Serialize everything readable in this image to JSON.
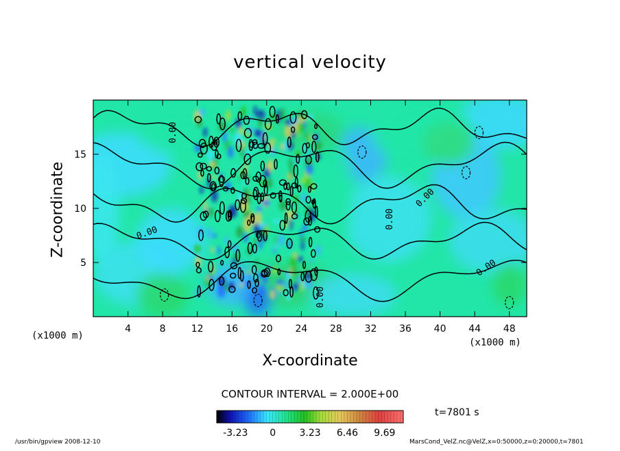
{
  "chart_data": {
    "type": "heatmap",
    "title": "vertical velocity",
    "xlabel": "X-coordinate",
    "ylabel": "Z-coordinate",
    "x_unit": "(x1000 m)",
    "xlim": [
      0,
      50
    ],
    "ylim": [
      0,
      20
    ],
    "x_ticks": [
      4,
      8,
      12,
      16,
      20,
      24,
      28,
      32,
      36,
      40,
      44,
      48
    ],
    "y_ticks": [
      5,
      10,
      15
    ],
    "contour_interval": "CONTOUR INTERVAL = 2.000E+00",
    "contour_labels": [
      "0.00",
      "0.00",
      "0.00",
      "0.00",
      "0.00",
      "0.00"
    ],
    "colorbar": {
      "ticks": [
        "-3.23",
        "0",
        "3.23",
        "6.46",
        "9.69"
      ],
      "tick_values": [
        -3.23,
        0,
        3.23,
        6.46,
        9.69
      ],
      "range": [
        -4.85,
        11.3
      ]
    },
    "time": "t=7801 s",
    "active_region": {
      "x_range": [
        12,
        26
      ],
      "z_range": [
        2,
        19
      ]
    }
  },
  "footer": {
    "left": "/usr/bin/gpview   2008-12-10",
    "right": "MarsCond_VelZ.nc@VelZ,x=0:50000,z=0:20000,t=7801"
  },
  "colors": {
    "background_field": "#22e6a8",
    "frame": "#000000"
  }
}
